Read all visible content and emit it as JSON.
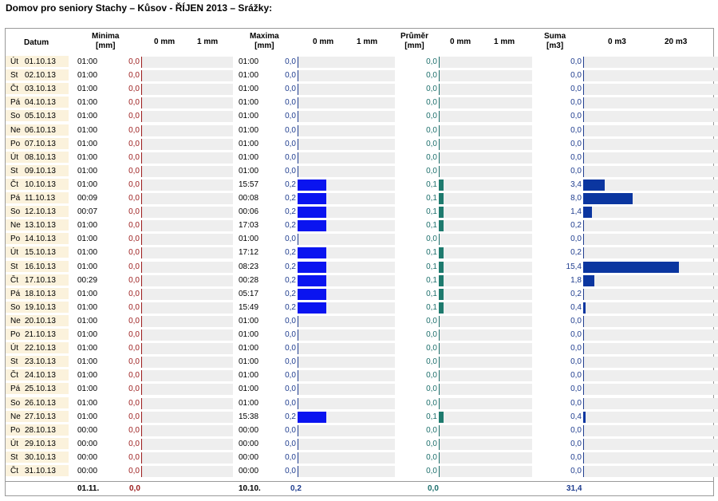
{
  "title": "Domov pro seniory Stachy – Kůsov - ŘÍJEN 2013 – Srážky:",
  "headers": {
    "datum": "Datum",
    "minima": "Minima",
    "minima_unit": "[mm]",
    "maxima": "Maxima",
    "maxima_unit": "[mm]",
    "prumer": "Průměr",
    "prumer_unit": "[mm]",
    "suma": "Suma",
    "suma_unit": "[m3]",
    "scale_min_0": "0 mm",
    "scale_min_1": "1 mm",
    "scale_max_0": "0 mm",
    "scale_max_1": "1 mm",
    "scale_avg_0": "0 mm",
    "scale_avg_1": "1 mm",
    "scale_sum_0": "0 m3",
    "scale_sum_20": "20 m3"
  },
  "colors": {
    "min_text": "#9b1b1b",
    "max_bar": "#0a14f0",
    "max_text": "#1f3d8f",
    "avg_bar": "#1e7a6e",
    "avg_text": "#1d6f6c",
    "sum_bar": "#0b36a0",
    "sum_text": "#1f3d8f",
    "date_bg": "#fbf2dc",
    "track_bg": "#eeeeee"
  },
  "rows": [
    {
      "day": "Út",
      "date": "01.10.13",
      "min_time": "01:00",
      "min": "0,0",
      "max_time": "01:00",
      "max": "0,0",
      "avg": "0,0",
      "sum": "0,0"
    },
    {
      "day": "St",
      "date": "02.10.13",
      "min_time": "01:00",
      "min": "0,0",
      "max_time": "01:00",
      "max": "0,0",
      "avg": "0,0",
      "sum": "0,0"
    },
    {
      "day": "Čt",
      "date": "03.10.13",
      "min_time": "01:00",
      "min": "0,0",
      "max_time": "01:00",
      "max": "0,0",
      "avg": "0,0",
      "sum": "0,0"
    },
    {
      "day": "Pá",
      "date": "04.10.13",
      "min_time": "01:00",
      "min": "0,0",
      "max_time": "01:00",
      "max": "0,0",
      "avg": "0,0",
      "sum": "0,0"
    },
    {
      "day": "So",
      "date": "05.10.13",
      "min_time": "01:00",
      "min": "0,0",
      "max_time": "01:00",
      "max": "0,0",
      "avg": "0,0",
      "sum": "0,0"
    },
    {
      "day": "Ne",
      "date": "06.10.13",
      "min_time": "01:00",
      "min": "0,0",
      "max_time": "01:00",
      "max": "0,0",
      "avg": "0,0",
      "sum": "0,0"
    },
    {
      "day": "Po",
      "date": "07.10.13",
      "min_time": "01:00",
      "min": "0,0",
      "max_time": "01:00",
      "max": "0,0",
      "avg": "0,0",
      "sum": "0,0"
    },
    {
      "day": "Út",
      "date": "08.10.13",
      "min_time": "01:00",
      "min": "0,0",
      "max_time": "01:00",
      "max": "0,0",
      "avg": "0,0",
      "sum": "0,0"
    },
    {
      "day": "St",
      "date": "09.10.13",
      "min_time": "01:00",
      "min": "0,0",
      "max_time": "01:00",
      "max": "0,0",
      "avg": "0,0",
      "sum": "0,0"
    },
    {
      "day": "Čt",
      "date": "10.10.13",
      "min_time": "01:00",
      "min": "0,0",
      "max_time": "15:57",
      "max": "0,2",
      "avg": "0,1",
      "sum": "3,4"
    },
    {
      "day": "Pá",
      "date": "11.10.13",
      "min_time": "00:09",
      "min": "0,0",
      "max_time": "00:08",
      "max": "0,2",
      "avg": "0,1",
      "sum": "8,0"
    },
    {
      "day": "So",
      "date": "12.10.13",
      "min_time": "00:07",
      "min": "0,0",
      "max_time": "00:06",
      "max": "0,2",
      "avg": "0,1",
      "sum": "1,4"
    },
    {
      "day": "Ne",
      "date": "13.10.13",
      "min_time": "01:00",
      "min": "0,0",
      "max_time": "17:03",
      "max": "0,2",
      "avg": "0,1",
      "sum": "0,2"
    },
    {
      "day": "Po",
      "date": "14.10.13",
      "min_time": "01:00",
      "min": "0,0",
      "max_time": "01:00",
      "max": "0,0",
      "avg": "0,0",
      "sum": "0,0"
    },
    {
      "day": "Út",
      "date": "15.10.13",
      "min_time": "01:00",
      "min": "0,0",
      "max_time": "17:12",
      "max": "0,2",
      "avg": "0,1",
      "sum": "0,2"
    },
    {
      "day": "St",
      "date": "16.10.13",
      "min_time": "01:00",
      "min": "0,0",
      "max_time": "08:23",
      "max": "0,2",
      "avg": "0,1",
      "sum": "15,4"
    },
    {
      "day": "Čt",
      "date": "17.10.13",
      "min_time": "00:29",
      "min": "0,0",
      "max_time": "00:28",
      "max": "0,2",
      "avg": "0,1",
      "sum": "1,8"
    },
    {
      "day": "Pá",
      "date": "18.10.13",
      "min_time": "01:00",
      "min": "0,0",
      "max_time": "05:17",
      "max": "0,2",
      "avg": "0,1",
      "sum": "0,2"
    },
    {
      "day": "So",
      "date": "19.10.13",
      "min_time": "01:00",
      "min": "0,0",
      "max_time": "15:49",
      "max": "0,2",
      "avg": "0,1",
      "sum": "0,4"
    },
    {
      "day": "Ne",
      "date": "20.10.13",
      "min_time": "01:00",
      "min": "0,0",
      "max_time": "01:00",
      "max": "0,0",
      "avg": "0,0",
      "sum": "0,0"
    },
    {
      "day": "Po",
      "date": "21.10.13",
      "min_time": "01:00",
      "min": "0,0",
      "max_time": "01:00",
      "max": "0,0",
      "avg": "0,0",
      "sum": "0,0"
    },
    {
      "day": "Út",
      "date": "22.10.13",
      "min_time": "01:00",
      "min": "0,0",
      "max_time": "01:00",
      "max": "0,0",
      "avg": "0,0",
      "sum": "0,0"
    },
    {
      "day": "St",
      "date": "23.10.13",
      "min_time": "01:00",
      "min": "0,0",
      "max_time": "01:00",
      "max": "0,0",
      "avg": "0,0",
      "sum": "0,0"
    },
    {
      "day": "Čt",
      "date": "24.10.13",
      "min_time": "01:00",
      "min": "0,0",
      "max_time": "01:00",
      "max": "0,0",
      "avg": "0,0",
      "sum": "0,0"
    },
    {
      "day": "Pá",
      "date": "25.10.13",
      "min_time": "01:00",
      "min": "0,0",
      "max_time": "01:00",
      "max": "0,0",
      "avg": "0,0",
      "sum": "0,0"
    },
    {
      "day": "So",
      "date": "26.10.13",
      "min_time": "01:00",
      "min": "0,0",
      "max_time": "01:00",
      "max": "0,0",
      "avg": "0,0",
      "sum": "0,0"
    },
    {
      "day": "Ne",
      "date": "27.10.13",
      "min_time": "01:00",
      "min": "0,0",
      "max_time": "15:38",
      "max": "0,2",
      "avg": "0,1",
      "sum": "0,4"
    },
    {
      "day": "Po",
      "date": "28.10.13",
      "min_time": "00:00",
      "min": "0,0",
      "max_time": "00:00",
      "max": "0,0",
      "avg": "0,0",
      "sum": "0,0"
    },
    {
      "day": "Út",
      "date": "29.10.13",
      "min_time": "00:00",
      "min": "0,0",
      "max_time": "00:00",
      "max": "0,0",
      "avg": "0,0",
      "sum": "0,0"
    },
    {
      "day": "St",
      "date": "30.10.13",
      "min_time": "00:00",
      "min": "0,0",
      "max_time": "00:00",
      "max": "0,0",
      "avg": "0,0",
      "sum": "0,0"
    },
    {
      "day": "Čt",
      "date": "31.10.13",
      "min_time": "00:00",
      "min": "0,0",
      "max_time": "00:00",
      "max": "0,0",
      "avg": "0,0",
      "sum": "0,0"
    }
  ],
  "footer": {
    "min_date": "01.11.",
    "min_value": "0,0",
    "max_date": "10.10.",
    "max_value": "0,2",
    "avg_value": "0,0",
    "sum_value": "31,4"
  }
}
